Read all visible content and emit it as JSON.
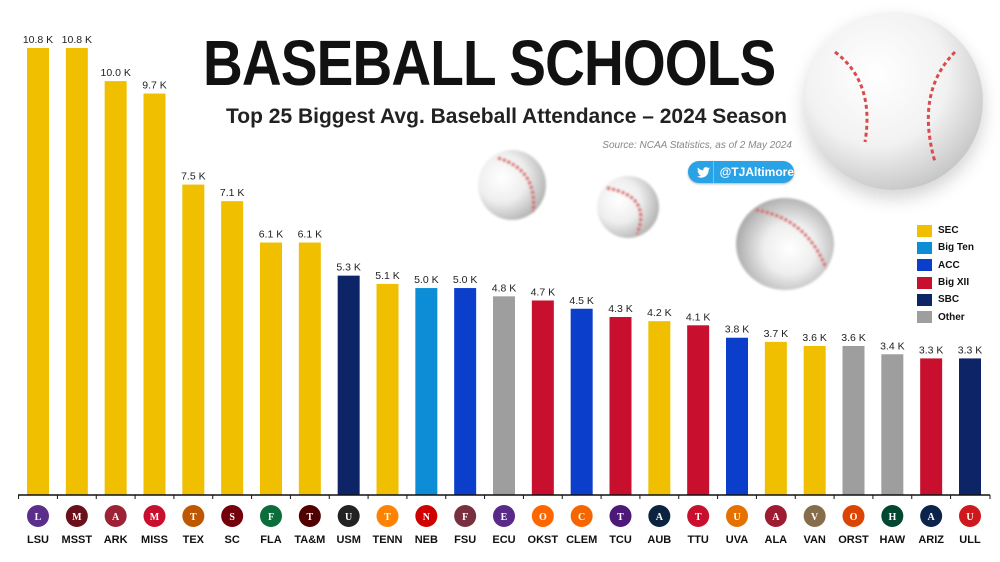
{
  "header": {
    "title": "BASEBALL SCHOOLS",
    "subtitle": "Top 25 Biggest Avg. Baseball Attendance – 2024 Season",
    "source": "Source:  NCAA Statistics, as of 2 May 2024",
    "social_handle": "@TJAltimore",
    "social_icon": "twitter-bird-icon"
  },
  "conference_colors": {
    "SEC": "#F0C000",
    "Big Ten": "#0C8DD6",
    "ACC": "#0B3FCB",
    "Big XII": "#C8102E",
    "SBC": "#0D2566",
    "Other": "#9E9E9E"
  },
  "legend": [
    {
      "label": "SEC",
      "color": "#F0C000"
    },
    {
      "label": "Big Ten",
      "color": "#0C8DD6"
    },
    {
      "label": "ACC",
      "color": "#0B3FCB"
    },
    {
      "label": "Big XII",
      "color": "#C8102E"
    },
    {
      "label": "SBC",
      "color": "#0D2566"
    },
    {
      "label": "Other",
      "color": "#9E9E9E"
    }
  ],
  "chart_data": {
    "type": "bar",
    "title": "BASEBALL SCHOOLS",
    "subtitle": "Top 25 Biggest Avg. Baseball Attendance – 2024 Season",
    "xlabel": "",
    "ylabel": "",
    "ylim": [
      0,
      10.8
    ],
    "unit": "K",
    "grid": false,
    "legend_position": "right",
    "categories": [
      "LSU",
      "MSST",
      "ARK",
      "MISS",
      "TEX",
      "SC",
      "FLA",
      "TA&M",
      "USM",
      "TENN",
      "NEB",
      "FSU",
      "ECU",
      "OKST",
      "CLEM",
      "TCU",
      "AUB",
      "TTU",
      "UVA",
      "ALA",
      "VAN",
      "ORST",
      "HAW",
      "ARIZ",
      "ULL"
    ],
    "values": [
      10.8,
      10.8,
      10.0,
      9.7,
      7.5,
      7.1,
      6.1,
      6.1,
      5.3,
      5.1,
      5.0,
      5.0,
      4.8,
      4.7,
      4.5,
      4.3,
      4.2,
      4.1,
      3.8,
      3.7,
      3.6,
      3.6,
      3.4,
      3.3,
      3.3
    ],
    "labels": [
      "10.8 K",
      "10.8 K",
      "10.0 K",
      "9.7 K",
      "7.5 K",
      "7.1 K",
      "6.1 K",
      "6.1 K",
      "5.3 K",
      "5.1 K",
      "5.0 K",
      "5.0 K",
      "4.8 K",
      "4.7 K",
      "4.5 K",
      "4.3 K",
      "4.2 K",
      "4.1 K",
      "3.8 K",
      "3.7 K",
      "3.6 K",
      "3.6 K",
      "3.4 K",
      "3.3 K",
      "3.3 K"
    ],
    "conferences": [
      "SEC",
      "SEC",
      "SEC",
      "SEC",
      "SEC",
      "SEC",
      "SEC",
      "SEC",
      "SBC",
      "SEC",
      "Big Ten",
      "ACC",
      "Other",
      "Big XII",
      "ACC",
      "Big XII",
      "SEC",
      "Big XII",
      "ACC",
      "SEC",
      "SEC",
      "Other",
      "Other",
      "Big XII",
      "SBC"
    ],
    "logo_colors": [
      "#5b2e8c",
      "#6b0f1a",
      "#9d2235",
      "#c8102e",
      "#bf5700",
      "#73000a",
      "#0a6d3a",
      "#500000",
      "#222222",
      "#ff8200",
      "#d00000",
      "#782f40",
      "#592a8a",
      "#ff6600",
      "#f56600",
      "#4d1979",
      "#0c2340",
      "#c8102e",
      "#e57200",
      "#9e1b32",
      "#866d4b",
      "#dc4405",
      "#024731",
      "#0c234b",
      "#ce181e"
    ]
  }
}
